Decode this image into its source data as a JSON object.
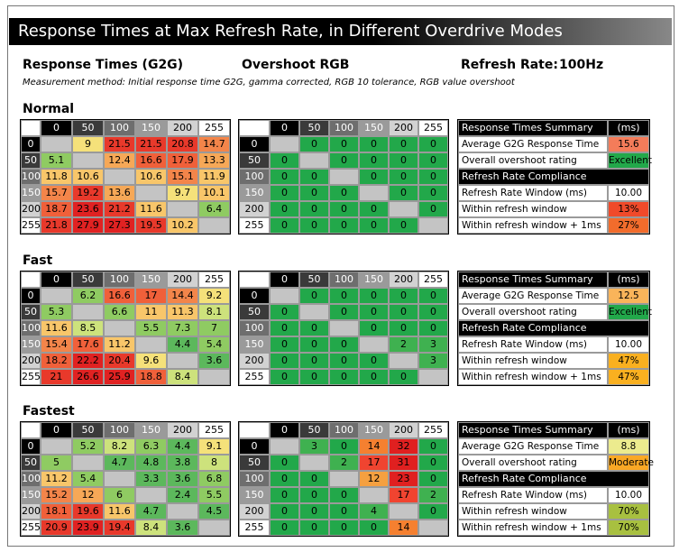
{
  "header": {
    "title": "Response Times at Max Refresh Rate, in Different Overdrive Modes",
    "rt_label": "Response Times (G2G)",
    "overshoot_label": "Overshoot RGB",
    "refresh_label": "Refresh Rate:",
    "refresh_value": "100Hz",
    "method": "Measurement method: Initial response time G2G, gamma corrected, RGB 10 tolerance, RGB value overshoot"
  },
  "sections": [
    {
      "title": "Normal",
      "response_times": {
        "columns": [
          0,
          50,
          100,
          150,
          200,
          255
        ],
        "rows": [
          {
            "label": 0,
            "cells": [
              null,
              9.0,
              21.5,
              21.5,
              20.8,
              14.7
            ]
          },
          {
            "label": 50,
            "cells": [
              5.1,
              null,
              12.4,
              16.6,
              17.9,
              13.3
            ]
          },
          {
            "label": 100,
            "cells": [
              11.8,
              10.6,
              null,
              10.6,
              15.1,
              11.9
            ]
          },
          {
            "label": 150,
            "cells": [
              15.7,
              19.2,
              13.6,
              null,
              9.7,
              10.1
            ]
          },
          {
            "label": 200,
            "cells": [
              18.7,
              23.6,
              21.2,
              11.6,
              null,
              6.4
            ]
          },
          {
            "label": 255,
            "cells": [
              21.8,
              27.9,
              27.3,
              19.5,
              10.2,
              null
            ]
          }
        ]
      },
      "overshoot": {
        "columns": [
          0,
          50,
          100,
          150,
          200,
          255
        ],
        "rows": [
          {
            "label": 0,
            "cells": [
              null,
              0,
              0,
              0,
              0,
              0
            ]
          },
          {
            "label": 50,
            "cells": [
              0,
              null,
              0,
              0,
              0,
              0
            ]
          },
          {
            "label": 100,
            "cells": [
              0,
              0,
              null,
              0,
              0,
              0
            ]
          },
          {
            "label": 150,
            "cells": [
              0,
              0,
              0,
              null,
              0,
              0
            ]
          },
          {
            "label": 200,
            "cells": [
              0,
              0,
              0,
              0,
              null,
              0
            ]
          },
          {
            "label": 255,
            "cells": [
              0,
              0,
              0,
              0,
              0,
              null
            ]
          }
        ]
      },
      "summary": [
        {
          "label": "Response Times Summary",
          "value": "(ms)",
          "header": true
        },
        {
          "label": "Average G2G Response Time",
          "value": "15.6",
          "color": "#f47c5a"
        },
        {
          "label": "Overall overshoot rating",
          "value": "Excellent",
          "color": "#22a84a"
        },
        {
          "label": "Refresh Rate Compliance",
          "header": true
        },
        {
          "label": "Refresh Rate Window (ms)",
          "value": "10.00",
          "color": "#ffffff"
        },
        {
          "label": "Within refresh window",
          "value": "13%",
          "color": "#f04a2a"
        },
        {
          "label": "Within refresh window + 1ms",
          "value": "27%",
          "color": "#f26c2c"
        }
      ]
    },
    {
      "title": "Fast",
      "response_times": {
        "columns": [
          0,
          50,
          100,
          150,
          200,
          255
        ],
        "rows": [
          {
            "label": 0,
            "cells": [
              null,
              6.2,
              16.6,
              17.0,
              14.4,
              9.2
            ]
          },
          {
            "label": 50,
            "cells": [
              5.3,
              null,
              6.6,
              11.0,
              11.3,
              8.1
            ]
          },
          {
            "label": 100,
            "cells": [
              11.6,
              8.5,
              null,
              5.5,
              7.3,
              7.0
            ]
          },
          {
            "label": 150,
            "cells": [
              15.4,
              17.6,
              11.2,
              null,
              4.4,
              5.4
            ]
          },
          {
            "label": 200,
            "cells": [
              18.2,
              22.2,
              20.4,
              9.6,
              null,
              3.6
            ]
          },
          {
            "label": 255,
            "cells": [
              21.0,
              26.6,
              25.9,
              18.8,
              8.4,
              null
            ]
          }
        ]
      },
      "overshoot": {
        "columns": [
          0,
          50,
          100,
          150,
          200,
          255
        ],
        "rows": [
          {
            "label": 0,
            "cells": [
              null,
              0,
              0,
              0,
              0,
              0
            ]
          },
          {
            "label": 50,
            "cells": [
              0,
              null,
              0,
              0,
              0,
              0
            ]
          },
          {
            "label": 100,
            "cells": [
              0,
              0,
              null,
              0,
              0,
              0
            ]
          },
          {
            "label": 150,
            "cells": [
              0,
              0,
              0,
              null,
              2,
              3
            ]
          },
          {
            "label": 200,
            "cells": [
              0,
              0,
              0,
              0,
              null,
              3
            ]
          },
          {
            "label": 255,
            "cells": [
              0,
              0,
              0,
              0,
              0,
              null
            ]
          }
        ]
      },
      "summary": [
        {
          "label": "Response Times Summary",
          "value": "(ms)",
          "header": true
        },
        {
          "label": "Average G2G Response Time",
          "value": "12.5",
          "color": "#f9b45a"
        },
        {
          "label": "Overall overshoot rating",
          "value": "Excellent",
          "color": "#22a84a"
        },
        {
          "label": "Refresh Rate Compliance",
          "header": true
        },
        {
          "label": "Refresh Rate Window (ms)",
          "value": "10.00",
          "color": "#ffffff"
        },
        {
          "label": "Within refresh window",
          "value": "47%",
          "color": "#f9b020"
        },
        {
          "label": "Within refresh window + 1ms",
          "value": "47%",
          "color": "#f9b020"
        }
      ]
    },
    {
      "title": "Fastest",
      "response_times": {
        "columns": [
          0,
          50,
          100,
          150,
          200,
          255
        ],
        "rows": [
          {
            "label": 0,
            "cells": [
              null,
              5.2,
              8.2,
              6.3,
              4.4,
              9.1
            ]
          },
          {
            "label": 50,
            "cells": [
              5.0,
              null,
              4.7,
              4.8,
              3.8,
              8.0
            ]
          },
          {
            "label": 100,
            "cells": [
              11.2,
              5.4,
              null,
              3.3,
              3.6,
              6.8
            ]
          },
          {
            "label": 150,
            "cells": [
              15.2,
              12.0,
              6.0,
              null,
              2.4,
              5.5
            ]
          },
          {
            "label": 200,
            "cells": [
              18.1,
              19.6,
              11.6,
              4.7,
              null,
              4.5
            ]
          },
          {
            "label": 255,
            "cells": [
              20.9,
              23.9,
              19.4,
              8.4,
              3.6,
              null
            ]
          }
        ]
      },
      "overshoot": {
        "columns": [
          0,
          50,
          100,
          150,
          200,
          255
        ],
        "rows": [
          {
            "label": 0,
            "cells": [
              null,
              3,
              0,
              14,
              32,
              0
            ]
          },
          {
            "label": 50,
            "cells": [
              0,
              null,
              2,
              17,
              31,
              0
            ]
          },
          {
            "label": 100,
            "cells": [
              0,
              0,
              null,
              12,
              23,
              0
            ]
          },
          {
            "label": 150,
            "cells": [
              0,
              0,
              0,
              null,
              17,
              2
            ]
          },
          {
            "label": 200,
            "cells": [
              0,
              0,
              0,
              4,
              null,
              0
            ]
          },
          {
            "label": 255,
            "cells": [
              0,
              0,
              0,
              0,
              14,
              null
            ]
          }
        ]
      },
      "summary": [
        {
          "label": "Response Times Summary",
          "value": "(ms)",
          "header": true
        },
        {
          "label": "Average G2G Response Time",
          "value": "8.8",
          "color": "#eceb8e"
        },
        {
          "label": "Overall overshoot rating",
          "value": "Moderate",
          "color": "#f9a825"
        },
        {
          "label": "Refresh Rate Compliance",
          "header": true
        },
        {
          "label": "Refresh Rate Window (ms)",
          "value": "10.00",
          "color": "#ffffff"
        },
        {
          "label": "Within refresh window",
          "value": "70%",
          "color": "#a8c040"
        },
        {
          "label": "Within refresh window + 1ms",
          "value": "70%",
          "color": "#a8c040"
        }
      ]
    }
  ]
}
